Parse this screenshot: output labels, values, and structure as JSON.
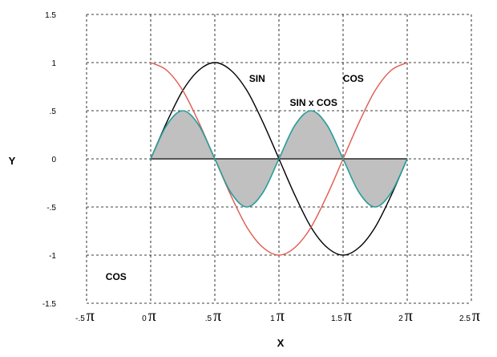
{
  "chart_data": {
    "type": "line",
    "xlabel": "X",
    "ylabel": "Y",
    "xlim": [
      -0.5,
      2.5
    ],
    "ylim": [
      -1.5,
      1.5
    ],
    "x_unit_symbol": "π",
    "grid": true,
    "y_ticks": [
      {
        "value": 1.5,
        "label": "1.5"
      },
      {
        "value": 1,
        "label": "1"
      },
      {
        "value": 0.5,
        "label": ".5"
      },
      {
        "value": 0,
        "label": "0"
      },
      {
        "value": -0.5,
        "label": "-.5"
      },
      {
        "value": -1,
        "label": "-1"
      },
      {
        "value": -1.5,
        "label": "-1.5"
      }
    ],
    "x_ticks": [
      {
        "value": -0.5,
        "label": "-.5"
      },
      {
        "value": 0,
        "label": "0"
      },
      {
        "value": 0.5,
        "label": ".5"
      },
      {
        "value": 1,
        "label": "1"
      },
      {
        "value": 1.5,
        "label": "1.5"
      },
      {
        "value": 2,
        "label": "2"
      },
      {
        "value": 2.5,
        "label": "2.5"
      }
    ],
    "series": [
      {
        "name": "SIN",
        "color": "#000000",
        "x": [
          0,
          0.125,
          0.25,
          0.375,
          0.5,
          0.625,
          0.75,
          0.875,
          1,
          1.125,
          1.25,
          1.375,
          1.5,
          1.625,
          1.75,
          1.875,
          2
        ],
        "y": [
          0,
          0.38,
          0.71,
          0.92,
          1,
          0.92,
          0.71,
          0.38,
          0,
          -0.38,
          -0.71,
          -0.92,
          -1,
          -0.92,
          -0.71,
          -0.38,
          0
        ]
      },
      {
        "name": "COS",
        "color": "#e05a4f",
        "x": [
          0,
          0.125,
          0.25,
          0.375,
          0.5,
          0.625,
          0.75,
          0.875,
          1,
          1.125,
          1.25,
          1.375,
          1.5,
          1.625,
          1.75,
          1.875,
          2
        ],
        "y": [
          1,
          0.92,
          0.71,
          0.38,
          0,
          -0.38,
          -0.71,
          -0.92,
          -1,
          -0.92,
          -0.71,
          -0.38,
          0,
          0.38,
          0.71,
          0.92,
          1
        ]
      },
      {
        "name": "SIN x COS",
        "color": "#2a9d9a",
        "fill": "#c0c0c0",
        "x": [
          0,
          0.125,
          0.25,
          0.375,
          0.5,
          0.625,
          0.75,
          0.875,
          1,
          1.125,
          1.25,
          1.375,
          1.5,
          1.625,
          1.75,
          1.875,
          2
        ],
        "y": [
          0,
          0.35,
          0.5,
          0.35,
          0,
          -0.35,
          -0.5,
          -0.35,
          0,
          0.35,
          0.5,
          0.35,
          0,
          -0.35,
          -0.5,
          -0.35,
          0
        ]
      }
    ],
    "annotations": [
      {
        "text": "SIN",
        "x": 0.83,
        "y": 0.8
      },
      {
        "text": "COS",
        "x": 1.58,
        "y": 0.8
      },
      {
        "text": "SIN x COS",
        "x": 1.27,
        "y": 0.55
      },
      {
        "text": "COS",
        "x": -0.27,
        "y": -1.26
      }
    ]
  }
}
